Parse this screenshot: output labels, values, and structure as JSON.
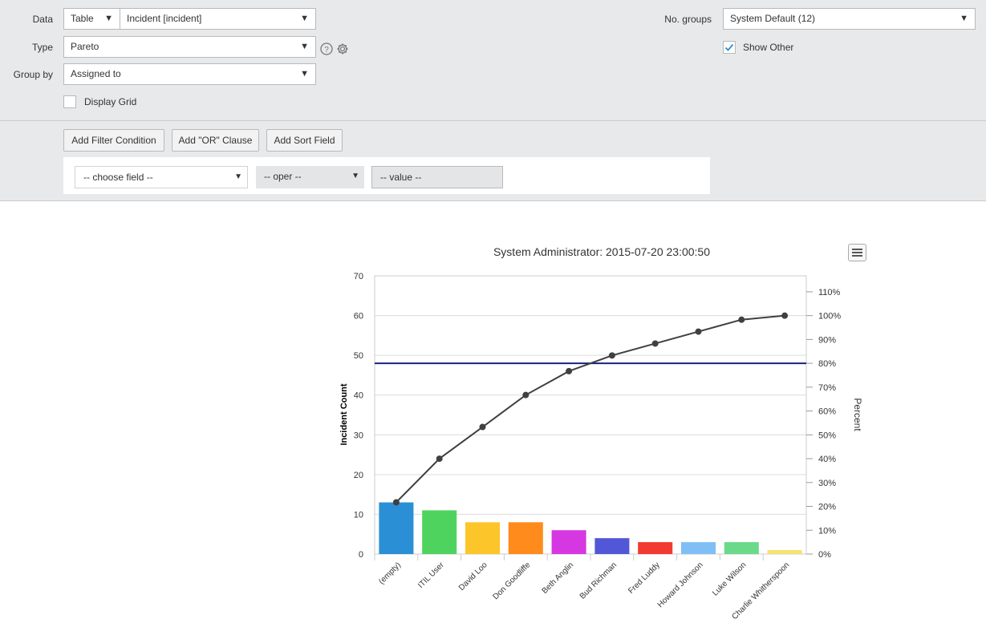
{
  "form": {
    "data_label": "Data",
    "data_source_type": "Table",
    "data_table": "Incident [incident]",
    "type_label": "Type",
    "type_value": "Pareto",
    "groupby_label": "Group by",
    "groupby_value": "Assigned to",
    "display_grid_label": "Display Grid",
    "display_grid_checked": false,
    "no_groups_label": "No. groups",
    "no_groups_value": "System Default (12)",
    "show_other_label": "Show Other",
    "show_other_checked": true
  },
  "filter": {
    "add_filter_label": "Add Filter Condition",
    "add_or_label": "Add \"OR\" Clause",
    "add_sort_label": "Add Sort Field",
    "field_placeholder": "-- choose field --",
    "oper_placeholder": "-- oper --",
    "value_placeholder": "-- value --"
  },
  "chart_data": {
    "type": "bar",
    "title": "System Administrator: 2015-07-20 23:00:50",
    "ylabel": "Incident Count",
    "y2label": "Percent",
    "categories": [
      "(empty)",
      "ITIL User",
      "David Loo",
      "Don Goodliffe",
      "Beth Anglin",
      "Bud Richman",
      "Fred Luddy",
      "Howard Johnson",
      "Luke Wilson",
      "Charlie Whitherspoon"
    ],
    "values": [
      13,
      11,
      8,
      8,
      6,
      4,
      3,
      3,
      3,
      1
    ],
    "colors": [
      "#2b8fd6",
      "#4fd35f",
      "#fcc52a",
      "#ff8b1c",
      "#d537e0",
      "#5157d6",
      "#f23a30",
      "#7fbff5",
      "#6ad98a",
      "#f5e270"
    ],
    "cumulative_percent": [
      21.7,
      40.0,
      53.3,
      66.7,
      76.7,
      83.3,
      88.3,
      93.3,
      98.3,
      100.0
    ],
    "threshold_percent": 80,
    "ylim": [
      0,
      70
    ],
    "yticks": [
      0,
      10,
      20,
      30,
      40,
      50,
      60,
      70
    ],
    "y2lim": [
      0,
      116.7
    ],
    "y2ticks": [
      "0%",
      "10%",
      "20%",
      "30%",
      "40%",
      "50%",
      "60%",
      "70%",
      "80%",
      "90%",
      "100%",
      "110%"
    ],
    "grid": true,
    "line_color": "#404040",
    "threshold_color": "#1a237e"
  }
}
